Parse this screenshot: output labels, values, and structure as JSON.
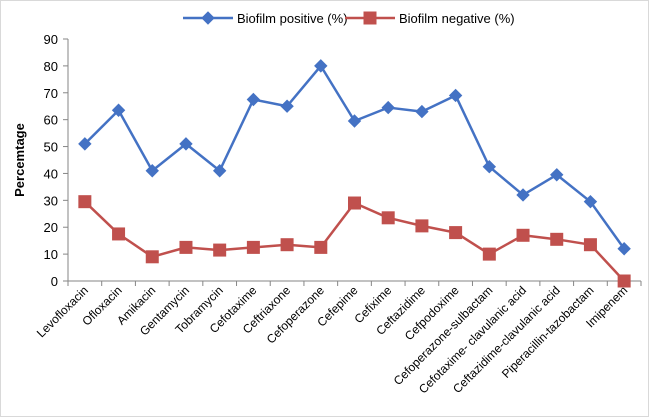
{
  "chart_data": {
    "type": "line",
    "title": "",
    "xlabel": "",
    "ylabel": "Percemtage",
    "ylim": [
      0,
      90
    ],
    "yticks": [
      "0",
      "10",
      "20",
      "30",
      "40",
      "50",
      "60",
      "70",
      "80",
      "90"
    ],
    "grid": false,
    "legend_position": "top",
    "categories": [
      "Levofloxacin",
      "Ofloxacin",
      "Amikacin",
      "Gentamycin",
      "Tobramycin",
      "Cefotaxime",
      "Ceftriaxone",
      "Cefoperazone",
      "Cefepime",
      "Cefixime",
      "Ceftazidime",
      "Cefpodoxime",
      "Cefoperazone-sulbactam",
      "Cefotaxime- clavulanic acid",
      "Ceftazidime-clavulanic acid",
      "Piperacillin-tazobactam",
      "Imipenem"
    ],
    "series": [
      {
        "name": "Biofilm positive (%)",
        "color": "#4472C4",
        "marker": "diamond",
        "values": [
          51,
          63.5,
          41,
          51,
          41,
          67.5,
          65,
          80,
          59.5,
          64.5,
          63,
          69,
          42.5,
          32,
          39.5,
          29.5,
          12
        ]
      },
      {
        "name": "Biofilm negative (%)",
        "color": "#C0504D",
        "marker": "square",
        "values": [
          29.5,
          17.5,
          9,
          12.5,
          11.5,
          12.5,
          13.5,
          12.5,
          29,
          23.5,
          20.5,
          18,
          10,
          17,
          15.5,
          13.5,
          0
        ]
      }
    ]
  }
}
